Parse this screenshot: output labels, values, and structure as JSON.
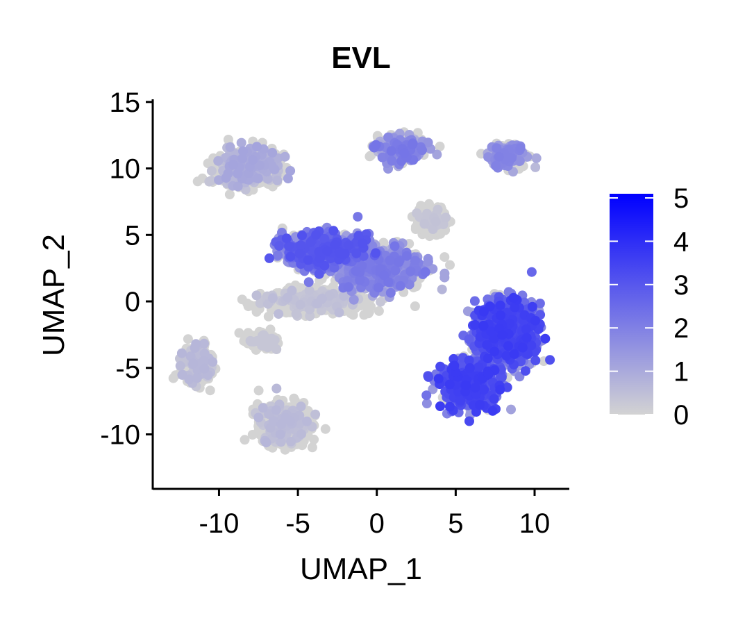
{
  "chart_data": {
    "type": "scatter",
    "title": "EVL",
    "xlabel": "UMAP_1",
    "ylabel": "UMAP_2",
    "xlim": [
      -14.2,
      12.2
    ],
    "ylim": [
      -14.1,
      15.2
    ],
    "xticks": [
      -10,
      -5,
      0,
      5,
      10
    ],
    "yticks": [
      -10,
      -5,
      0,
      5,
      10,
      15
    ],
    "grid": false,
    "legend": {
      "placement": "right",
      "kind": "colorbar",
      "range": [
        0,
        5
      ],
      "ticks": [
        0,
        1,
        2,
        3,
        4,
        5
      ],
      "low_color": "#d3d3d3",
      "high_color": "#0000ff"
    },
    "clusters": [
      {
        "center": [
          -8.2,
          10.0
        ],
        "spread": [
          1.9,
          1.3
        ],
        "mean_expression": 0.8
      },
      {
        "center": [
          1.5,
          11.5
        ],
        "spread": [
          1.4,
          0.9
        ],
        "mean_expression": 1.6
      },
      {
        "center": [
          8.3,
          11.0
        ],
        "spread": [
          1.1,
          0.8
        ],
        "mean_expression": 1.4
      },
      {
        "center": [
          3.5,
          6.0
        ],
        "spread": [
          0.9,
          0.8
        ],
        "mean_expression": 0.3
      },
      {
        "center": [
          -3.5,
          3.8
        ],
        "spread": [
          2.4,
          1.2
        ],
        "mean_expression": 2.2
      },
      {
        "center": [
          0.0,
          2.5
        ],
        "spread": [
          2.6,
          1.4
        ],
        "mean_expression": 1.6
      },
      {
        "center": [
          -4.0,
          0.0
        ],
        "spread": [
          3.0,
          0.8
        ],
        "mean_expression": 0.4
      },
      {
        "center": [
          -11.4,
          -4.8
        ],
        "spread": [
          0.9,
          1.3
        ],
        "mean_expression": 0.5
      },
      {
        "center": [
          -7.2,
          -3.0
        ],
        "spread": [
          0.9,
          0.6
        ],
        "mean_expression": 0.2
      },
      {
        "center": [
          -5.9,
          -9.2
        ],
        "spread": [
          1.6,
          1.4
        ],
        "mean_expression": 0.5
      },
      {
        "center": [
          8.1,
          -2.5
        ],
        "spread": [
          1.8,
          2.2
        ],
        "mean_expression": 2.6
      },
      {
        "center": [
          5.8,
          -6.3
        ],
        "spread": [
          1.7,
          1.6
        ],
        "mean_expression": 2.6
      }
    ]
  }
}
